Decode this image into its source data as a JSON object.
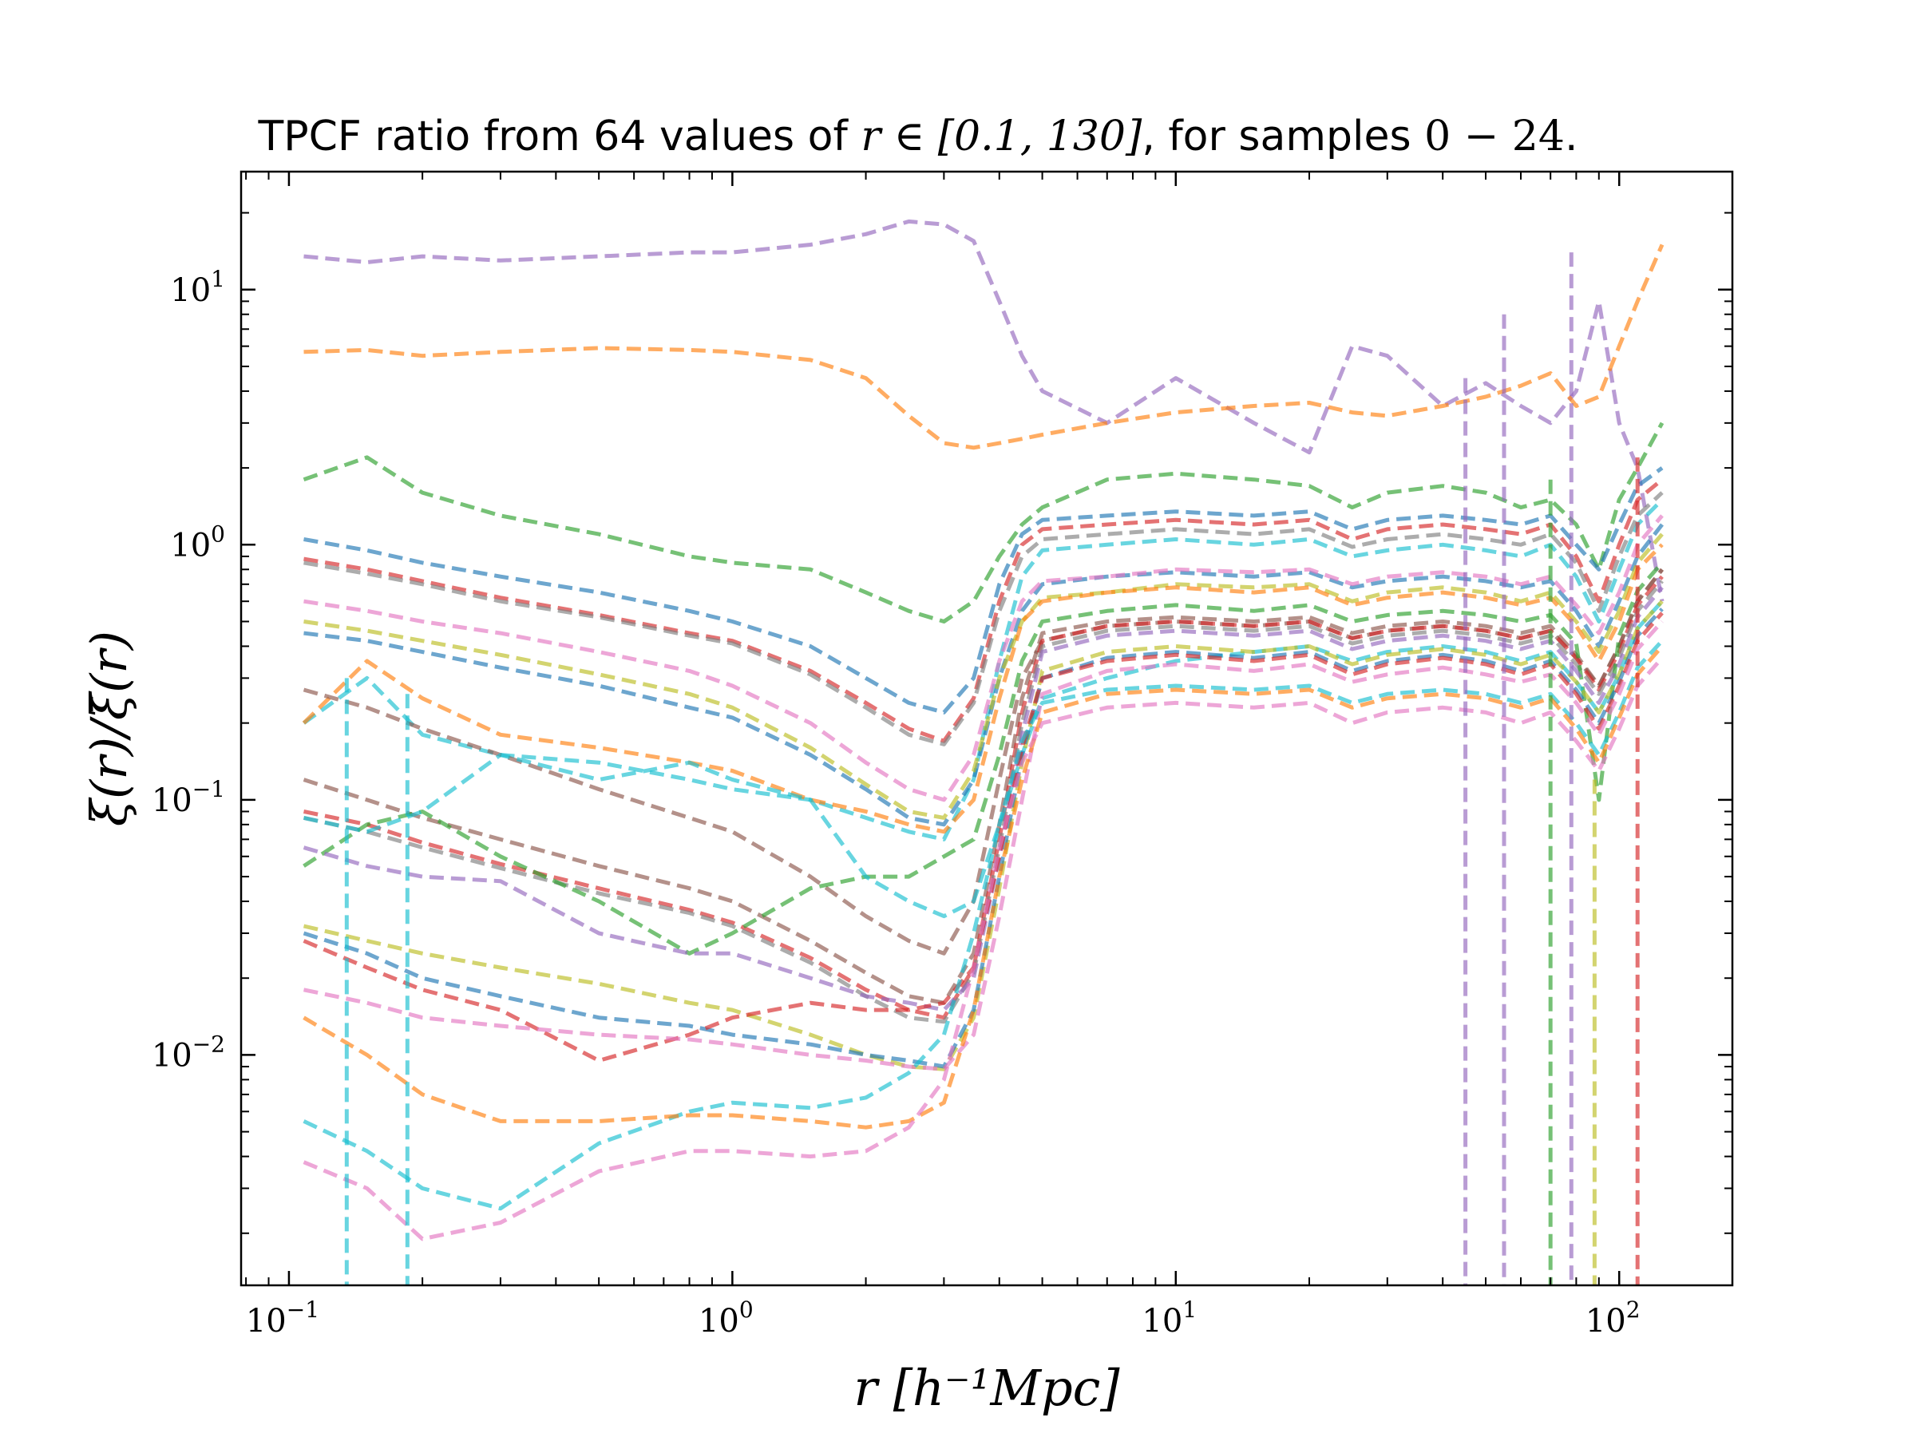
{
  "chart_data": {
    "type": "line",
    "title": {
      "prefix": "TPCF ratio from 64 values of ",
      "math": "r ∈ [0.1, 130]",
      "middle": ", for samples ",
      "math2": "0 − 24",
      "suffix": "."
    },
    "xlabel": "r [h⁻¹Mpc]",
    "ylabel": "ξ(r)/ξ̄(r)",
    "xscale": "log",
    "yscale": "log",
    "xlim": [
      0.078,
      180
    ],
    "ylim": [
      0.00125,
      29
    ],
    "grid": false,
    "legend": "none",
    "line_style": "dashed",
    "x_ticks": [
      {
        "value": 0.1,
        "base": "10",
        "exp": "−1"
      },
      {
        "value": 1,
        "base": "10",
        "exp": "0"
      },
      {
        "value": 10,
        "base": "10",
        "exp": "1"
      },
      {
        "value": 100,
        "base": "10",
        "exp": "2"
      }
    ],
    "y_ticks": [
      {
        "value": 0.01,
        "base": "10",
        "exp": "−2"
      },
      {
        "value": 0.1,
        "base": "10",
        "exp": "−1"
      },
      {
        "value": 1,
        "base": "10",
        "exp": "0"
      },
      {
        "value": 10,
        "base": "10",
        "exp": "1"
      }
    ],
    "x": [
      0.108,
      0.15,
      0.2,
      0.3,
      0.5,
      0.8,
      1.0,
      1.5,
      2.0,
      2.5,
      3.0,
      3.5,
      4.0,
      4.5,
      5.0,
      7.0,
      10.0,
      15.0,
      20.0,
      25.0,
      30.0,
      40.0,
      50.0,
      60.0,
      70.0,
      80.0,
      90.0,
      100.0,
      110.0,
      125.0
    ],
    "series": [
      {
        "color": "#9467bd",
        "values": [
          13.5,
          12.8,
          13.5,
          13.0,
          13.5,
          14.0,
          14.0,
          15.0,
          16.5,
          18.5,
          18.0,
          15.5,
          9.0,
          5.5,
          4.0,
          3.0,
          4.5,
          3.0,
          2.3,
          6.0,
          5.5,
          3.5,
          4.3,
          3.5,
          3.0,
          4.0,
          9.0,
          3.0,
          2.0,
          0.6
        ]
      },
      {
        "color": "#ff7f0e",
        "values": [
          5.7,
          5.8,
          5.5,
          5.7,
          5.9,
          5.8,
          5.7,
          5.3,
          4.5,
          3.2,
          2.5,
          2.4,
          2.5,
          2.6,
          2.7,
          3.0,
          3.3,
          3.5,
          3.6,
          3.3,
          3.2,
          3.5,
          3.8,
          4.2,
          4.7,
          3.5,
          3.8,
          6.0,
          9.0,
          15.0
        ]
      },
      {
        "color": "#2ca02c",
        "values": [
          1.8,
          2.2,
          1.6,
          1.3,
          1.1,
          0.9,
          0.85,
          0.8,
          0.65,
          0.55,
          0.5,
          0.6,
          0.9,
          1.2,
          1.4,
          1.8,
          1.9,
          1.8,
          1.7,
          1.4,
          1.6,
          1.7,
          1.6,
          1.4,
          1.5,
          1.2,
          0.8,
          1.5,
          2.0,
          3.0
        ]
      },
      {
        "color": "#1f77b4",
        "values": [
          1.05,
          0.95,
          0.85,
          0.75,
          0.65,
          0.55,
          0.5,
          0.4,
          0.3,
          0.24,
          0.22,
          0.3,
          0.7,
          1.1,
          1.25,
          1.3,
          1.35,
          1.3,
          1.35,
          1.15,
          1.25,
          1.3,
          1.25,
          1.2,
          1.3,
          1.0,
          0.8,
          1.2,
          1.7,
          2.0
        ]
      },
      {
        "color": "#d62728",
        "values": [
          0.88,
          0.8,
          0.72,
          0.62,
          0.53,
          0.45,
          0.42,
          0.32,
          0.24,
          0.19,
          0.17,
          0.25,
          0.6,
          1.0,
          1.15,
          1.2,
          1.25,
          1.2,
          1.25,
          1.05,
          1.15,
          1.2,
          1.15,
          1.1,
          1.2,
          0.9,
          0.6,
          1.0,
          1.5,
          1.8
        ]
      },
      {
        "color": "#7f7f7f",
        "values": [
          0.85,
          0.77,
          0.7,
          0.6,
          0.52,
          0.44,
          0.41,
          0.31,
          0.23,
          0.18,
          0.165,
          0.24,
          0.55,
          0.9,
          1.05,
          1.1,
          1.15,
          1.1,
          1.15,
          0.98,
          1.05,
          1.1,
          1.05,
          1.0,
          1.1,
          0.85,
          0.55,
          0.9,
          1.3,
          1.6
        ]
      },
      {
        "color": "#17becf",
        "values": [
          0.2,
          0.3,
          0.18,
          0.15,
          0.14,
          0.12,
          0.11,
          0.1,
          0.085,
          0.075,
          0.07,
          0.12,
          0.35,
          0.75,
          0.95,
          1.0,
          1.05,
          1.0,
          1.05,
          0.9,
          0.95,
          1.0,
          0.95,
          0.9,
          1.0,
          0.75,
          0.5,
          0.8,
          1.2,
          1.5
        ]
      },
      {
        "color": "#1f77b4",
        "values": [
          0.45,
          0.42,
          0.38,
          0.33,
          0.28,
          0.23,
          0.21,
          0.15,
          0.11,
          0.085,
          0.08,
          0.12,
          0.3,
          0.55,
          0.7,
          0.75,
          0.78,
          0.75,
          0.78,
          0.68,
          0.72,
          0.75,
          0.72,
          0.68,
          0.72,
          0.55,
          0.4,
          0.6,
          0.9,
          1.2
        ]
      },
      {
        "color": "#e377c2",
        "values": [
          0.6,
          0.55,
          0.5,
          0.45,
          0.38,
          0.32,
          0.28,
          0.2,
          0.14,
          0.11,
          0.1,
          0.15,
          0.35,
          0.6,
          0.72,
          0.75,
          0.8,
          0.78,
          0.8,
          0.7,
          0.75,
          0.78,
          0.75,
          0.7,
          0.75,
          0.58,
          0.45,
          0.65,
          1.0,
          1.3
        ]
      },
      {
        "color": "#bcbd22",
        "values": [
          0.5,
          0.46,
          0.42,
          0.37,
          0.31,
          0.26,
          0.23,
          0.16,
          0.115,
          0.09,
          0.085,
          0.13,
          0.3,
          0.5,
          0.62,
          0.65,
          0.7,
          0.68,
          0.7,
          0.6,
          0.65,
          0.68,
          0.65,
          0.6,
          0.65,
          0.5,
          0.38,
          0.55,
          0.85,
          1.1
        ]
      },
      {
        "color": "#ff7f0e",
        "values": [
          0.2,
          0.35,
          0.25,
          0.18,
          0.16,
          0.14,
          0.13,
          0.1,
          0.09,
          0.08,
          0.075,
          0.1,
          0.25,
          0.5,
          0.6,
          0.65,
          0.68,
          0.65,
          0.68,
          0.58,
          0.62,
          0.65,
          0.62,
          0.58,
          0.62,
          0.48,
          0.35,
          0.5,
          0.8,
          1.0
        ]
      },
      {
        "color": "#8c564b",
        "values": [
          0.27,
          0.23,
          0.19,
          0.15,
          0.11,
          0.085,
          0.075,
          0.05,
          0.035,
          0.028,
          0.025,
          0.04,
          0.12,
          0.3,
          0.42,
          0.48,
          0.5,
          0.48,
          0.5,
          0.43,
          0.46,
          0.48,
          0.46,
          0.43,
          0.46,
          0.36,
          0.28,
          0.4,
          0.6,
          0.8
        ]
      },
      {
        "color": "#8c564b",
        "values": [
          0.12,
          0.1,
          0.085,
          0.07,
          0.055,
          0.045,
          0.04,
          0.028,
          0.021,
          0.017,
          0.016,
          0.025,
          0.08,
          0.25,
          0.45,
          0.5,
          0.52,
          0.5,
          0.52,
          0.45,
          0.48,
          0.5,
          0.48,
          0.45,
          0.48,
          0.37,
          0.28,
          0.4,
          0.6,
          0.8
        ]
      },
      {
        "color": "#d62728",
        "values": [
          0.09,
          0.08,
          0.068,
          0.056,
          0.045,
          0.037,
          0.033,
          0.024,
          0.018,
          0.015,
          0.014,
          0.022,
          0.07,
          0.22,
          0.42,
          0.48,
          0.5,
          0.48,
          0.5,
          0.43,
          0.46,
          0.48,
          0.46,
          0.43,
          0.46,
          0.36,
          0.27,
          0.38,
          0.58,
          0.75
        ]
      },
      {
        "color": "#7f7f7f",
        "values": [
          0.085,
          0.075,
          0.065,
          0.054,
          0.043,
          0.036,
          0.032,
          0.023,
          0.017,
          0.014,
          0.0135,
          0.021,
          0.065,
          0.2,
          0.4,
          0.46,
          0.48,
          0.46,
          0.48,
          0.41,
          0.44,
          0.46,
          0.44,
          0.41,
          0.44,
          0.34,
          0.26,
          0.36,
          0.55,
          0.72
        ]
      },
      {
        "color": "#2ca02c",
        "values": [
          0.055,
          0.08,
          0.09,
          0.06,
          0.04,
          0.025,
          0.03,
          0.045,
          0.05,
          0.05,
          0.06,
          0.07,
          0.15,
          0.35,
          0.5,
          0.55,
          0.58,
          0.55,
          0.58,
          0.5,
          0.53,
          0.55,
          0.53,
          0.5,
          0.53,
          0.41,
          0.1,
          0.44,
          0.66,
          0.85
        ]
      },
      {
        "color": "#9467bd",
        "values": [
          0.065,
          0.055,
          0.05,
          0.048,
          0.03,
          0.025,
          0.025,
          0.02,
          0.017,
          0.016,
          0.015,
          0.02,
          0.06,
          0.18,
          0.38,
          0.44,
          0.46,
          0.44,
          0.46,
          0.39,
          0.42,
          0.44,
          0.42,
          0.39,
          0.42,
          0.32,
          0.24,
          0.34,
          0.52,
          0.68
        ]
      },
      {
        "color": "#17becf",
        "values": [
          0.085,
          0.075,
          0.09,
          0.15,
          0.12,
          0.14,
          0.12,
          0.1,
          0.05,
          0.04,
          0.035,
          0.04,
          0.08,
          0.15,
          0.25,
          0.3,
          0.35,
          0.38,
          0.4,
          0.35,
          0.38,
          0.4,
          0.38,
          0.35,
          0.38,
          0.29,
          0.22,
          0.31,
          0.47,
          0.6
        ]
      },
      {
        "color": "#bcbd22",
        "values": [
          0.032,
          0.028,
          0.025,
          0.022,
          0.019,
          0.016,
          0.015,
          0.012,
          0.01,
          0.009,
          0.0088,
          0.014,
          0.045,
          0.14,
          0.32,
          0.38,
          0.4,
          0.38,
          0.4,
          0.34,
          0.37,
          0.39,
          0.37,
          0.34,
          0.37,
          0.29,
          0.22,
          0.31,
          0.47,
          0.6
        ]
      },
      {
        "color": "#1f77b4",
        "values": [
          0.03,
          0.025,
          0.02,
          0.017,
          0.014,
          0.013,
          0.012,
          0.011,
          0.01,
          0.0095,
          0.009,
          0.015,
          0.05,
          0.15,
          0.3,
          0.36,
          0.38,
          0.36,
          0.38,
          0.32,
          0.35,
          0.37,
          0.35,
          0.32,
          0.35,
          0.27,
          0.2,
          0.29,
          0.44,
          0.56
        ]
      },
      {
        "color": "#d62728",
        "values": [
          0.028,
          0.022,
          0.018,
          0.015,
          0.0095,
          0.012,
          0.014,
          0.016,
          0.015,
          0.015,
          0.016,
          0.022,
          0.06,
          0.16,
          0.3,
          0.35,
          0.37,
          0.35,
          0.37,
          0.31,
          0.34,
          0.36,
          0.34,
          0.31,
          0.34,
          0.26,
          0.19,
          0.28,
          0.42,
          0.54
        ]
      },
      {
        "color": "#e377c2",
        "values": [
          0.018,
          0.016,
          0.014,
          0.013,
          0.012,
          0.0115,
          0.011,
          0.01,
          0.0095,
          0.009,
          0.0088,
          0.012,
          0.035,
          0.1,
          0.26,
          0.32,
          0.34,
          0.32,
          0.34,
          0.29,
          0.31,
          0.33,
          0.31,
          0.29,
          0.31,
          0.24,
          0.18,
          0.26,
          0.39,
          0.5
        ]
      },
      {
        "color": "#17becf",
        "values": [
          0.0055,
          0.0042,
          0.003,
          0.0025,
          0.0045,
          0.006,
          0.0065,
          0.0062,
          0.0068,
          0.0085,
          0.012,
          0.03,
          0.08,
          0.17,
          0.24,
          0.27,
          0.28,
          0.27,
          0.28,
          0.24,
          0.26,
          0.27,
          0.26,
          0.24,
          0.26,
          0.2,
          0.15,
          0.22,
          0.33,
          0.42
        ]
      },
      {
        "color": "#ff7f0e",
        "values": [
          0.014,
          0.01,
          0.007,
          0.0055,
          0.0055,
          0.0058,
          0.0058,
          0.0055,
          0.0052,
          0.0055,
          0.0065,
          0.015,
          0.05,
          0.12,
          0.22,
          0.26,
          0.27,
          0.26,
          0.27,
          0.23,
          0.25,
          0.26,
          0.25,
          0.23,
          0.25,
          0.19,
          0.14,
          0.21,
          0.31,
          0.4
        ]
      },
      {
        "color": "#e377c2",
        "values": [
          0.0038,
          0.003,
          0.0019,
          0.0022,
          0.0035,
          0.0042,
          0.0042,
          0.004,
          0.0042,
          0.0052,
          0.008,
          0.022,
          0.065,
          0.14,
          0.2,
          0.23,
          0.24,
          0.23,
          0.24,
          0.2,
          0.22,
          0.23,
          0.22,
          0.2,
          0.22,
          0.17,
          0.13,
          0.19,
          0.28,
          0.36
        ]
      }
    ],
    "drop_lines": [
      {
        "x": 0.135,
        "from": 0.3,
        "color": "#17becf"
      },
      {
        "x": 0.185,
        "from": 0.26,
        "color": "#17becf"
      },
      {
        "x": 45,
        "from": 4.5,
        "color": "#9467bd"
      },
      {
        "x": 55,
        "from": 8.0,
        "color": "#9467bd"
      },
      {
        "x": 70,
        "from": 1.8,
        "color": "#2ca02c"
      },
      {
        "x": 78,
        "from": 14.0,
        "color": "#9467bd"
      },
      {
        "x": 88,
        "from": 0.12,
        "color": "#bcbd22"
      },
      {
        "x": 110,
        "from": 2.2,
        "color": "#d62728"
      }
    ]
  }
}
